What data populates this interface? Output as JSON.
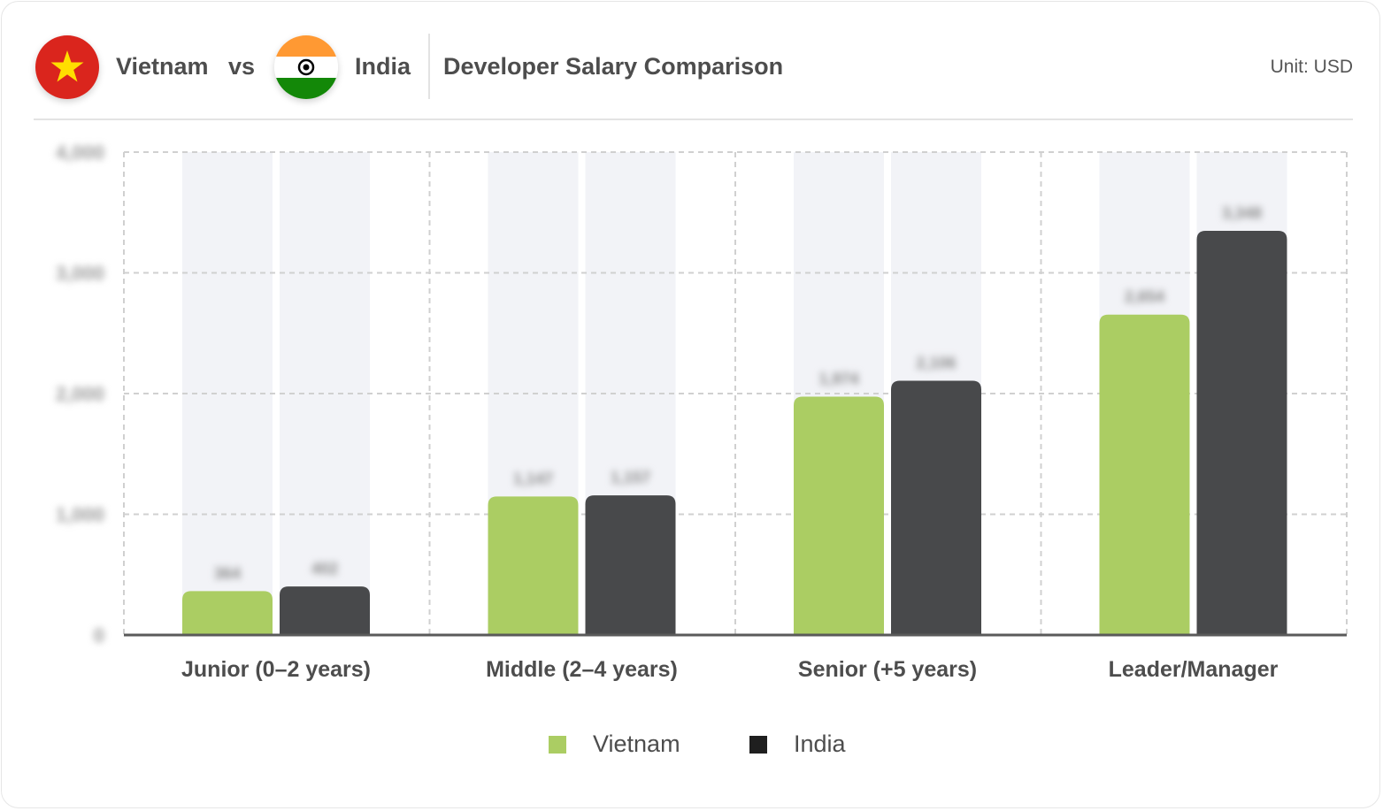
{
  "header": {
    "country_a": "Vietnam",
    "vs_label": "vs",
    "country_b": "India",
    "title": "Developer Salary Comparison",
    "unit": "Unit: USD"
  },
  "colors": {
    "vietnam": "#abcd63",
    "india": "#48494b",
    "bar_background": "#f2f3f7",
    "grid": "#d0d0d0"
  },
  "chart_data": {
    "type": "bar",
    "title": "Developer Salary Comparison",
    "categories": [
      "Junior (0–2 years)",
      "Middle (2–4 years)",
      "Senior (+5 years)",
      "Leader/Manager"
    ],
    "series": [
      {
        "name": "Vietnam",
        "values": [
          364,
          1147,
          1974,
          2654
        ]
      },
      {
        "name": "India",
        "values": [
          402,
          1157,
          2106,
          3348
        ]
      }
    ],
    "value_labels_obscured": true,
    "y_tick_labels_obscured": true,
    "ylim": [
      0,
      4000
    ],
    "y_ticks": [
      0,
      1000,
      2000,
      3000,
      4000
    ],
    "grid": true,
    "legend_position": "bottom-center"
  }
}
